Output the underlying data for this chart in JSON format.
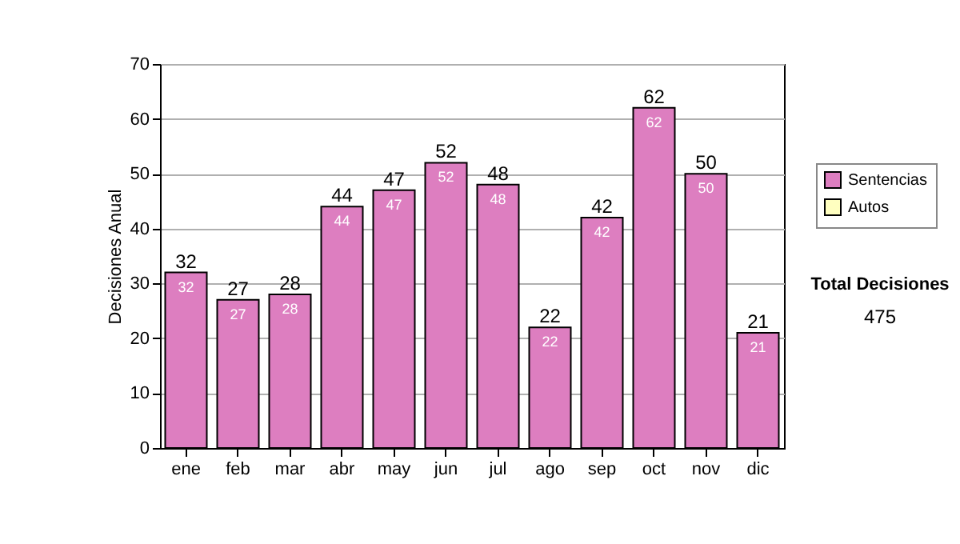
{
  "chart_data": {
    "type": "bar",
    "ylabel": "Decisiones Anual",
    "categories": [
      "ene",
      "feb",
      "mar",
      "abr",
      "may",
      "jun",
      "jul",
      "ago",
      "sep",
      "oct",
      "nov",
      "dic"
    ],
    "series": [
      {
        "name": "Sentencias",
        "color": "#dd7ec0",
        "values": [
          32,
          27,
          28,
          44,
          47,
          52,
          48,
          22,
          42,
          62,
          50,
          21
        ]
      },
      {
        "name": "Autos",
        "color": "#ffffc0",
        "values": [
          null,
          null,
          null,
          null,
          null,
          null,
          null,
          null,
          null,
          null,
          null,
          null
        ]
      }
    ],
    "stacked": true,
    "data_labels": true,
    "totals": [
      "32",
      "27",
      "28",
      "44",
      "47",
      "52",
      "48",
      "22",
      "42",
      "62",
      "50",
      "21"
    ],
    "ylim": [
      0,
      70
    ],
    "yticks": [
      0,
      10,
      20,
      30,
      40,
      50,
      60,
      70
    ],
    "grid": "y",
    "legend": "right",
    "annotations": [
      "Total Decisiones",
      "475"
    ]
  }
}
